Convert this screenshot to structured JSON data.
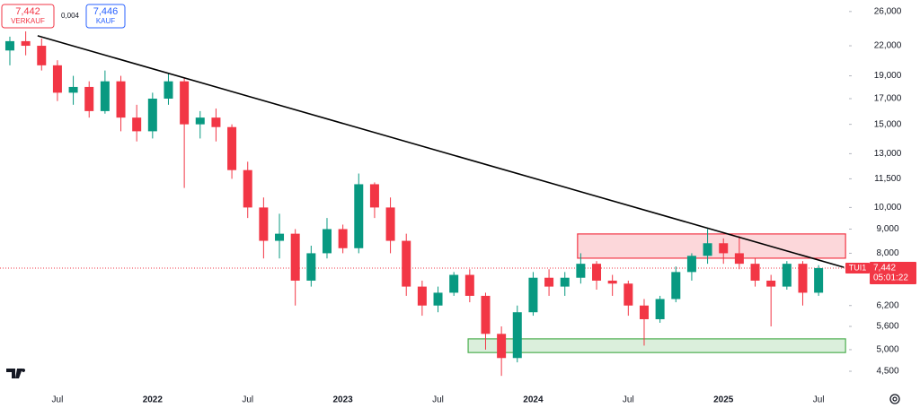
{
  "chart_data": {
    "type": "candlestick",
    "symbol": "TUI1",
    "categories": [
      null,
      null,
      null,
      null,
      "Jul",
      null,
      null,
      null,
      null,
      null,
      "2022",
      null,
      null,
      null,
      null,
      null,
      "Jul",
      null,
      null,
      null,
      null,
      null,
      "2023",
      null,
      null,
      null,
      null,
      null,
      "Jul",
      null,
      null,
      null,
      null,
      null,
      "2024",
      null,
      null,
      null,
      null,
      null,
      "Jul",
      null,
      null,
      null,
      null,
      null,
      "2025",
      null,
      null,
      null,
      null,
      null,
      "Jul"
    ],
    "open": [
      20.5,
      21.5,
      22.5,
      22.0,
      20.0,
      17.5,
      18.0,
      16.0,
      18.5,
      15.5,
      14.5,
      17.0,
      18.5,
      15.0,
      15.5,
      14.8,
      12.0,
      10.0,
      8.5,
      8.8,
      7.0,
      8.0,
      9.0,
      8.2,
      11.2,
      10.0,
      8.5,
      6.8,
      6.2,
      6.6,
      7.2,
      6.5,
      5.4,
      4.8,
      6.0,
      7.1,
      6.8,
      7.1,
      7.6,
      7.0,
      6.9,
      6.2,
      5.8,
      6.4,
      7.3,
      7.9,
      8.4,
      8.0,
      7.6,
      7.0,
      6.8,
      7.6,
      6.6
    ],
    "high": [
      22.5,
      23.0,
      23.6,
      22.8,
      20.5,
      19.0,
      18.5,
      19.5,
      19.0,
      16.5,
      17.5,
      19.2,
      18.8,
      16.0,
      16.2,
      15.0,
      12.5,
      10.5,
      9.7,
      9.0,
      8.3,
      9.5,
      9.2,
      11.8,
      11.3,
      10.5,
      8.8,
      7.0,
      6.8,
      7.3,
      7.4,
      6.6,
      5.6,
      6.2,
      7.3,
      7.4,
      7.3,
      8.0,
      7.7,
      7.2,
      7.0,
      6.4,
      6.5,
      7.5,
      8.0,
      9.0,
      8.6,
      8.7,
      7.8,
      7.2,
      7.7,
      7.7,
      7.55
    ],
    "low": [
      18.5,
      20.0,
      21.0,
      19.5,
      16.8,
      16.5,
      15.5,
      15.8,
      14.5,
      13.8,
      14.0,
      16.5,
      11.0,
      14.0,
      13.8,
      11.5,
      9.5,
      7.8,
      7.8,
      6.2,
      6.8,
      7.8,
      8.0,
      8.0,
      9.5,
      8.0,
      6.5,
      5.9,
      6.0,
      6.5,
      6.3,
      5.0,
      4.4,
      4.7,
      5.9,
      6.5,
      6.5,
      6.9,
      6.7,
      6.5,
      5.9,
      5.1,
      5.7,
      6.3,
      7.0,
      7.6,
      7.6,
      7.4,
      6.8,
      5.6,
      6.7,
      6.2,
      6.5
    ],
    "close": [
      21.5,
      22.5,
      22.0,
      20.0,
      17.5,
      18.0,
      16.0,
      18.5,
      15.5,
      14.5,
      17.0,
      18.5,
      15.0,
      15.5,
      14.8,
      12.0,
      10.0,
      8.5,
      8.8,
      7.0,
      8.0,
      9.0,
      8.2,
      11.2,
      10.0,
      8.5,
      6.8,
      6.2,
      6.6,
      7.2,
      6.5,
      5.4,
      4.8,
      6.0,
      7.1,
      6.8,
      7.1,
      7.6,
      7.0,
      6.9,
      6.2,
      5.8,
      6.4,
      7.3,
      7.9,
      8.4,
      8.0,
      7.6,
      7.0,
      6.8,
      7.6,
      6.6,
      7.442
    ],
    "up_color": "#089981",
    "down_color": "#f23645",
    "log_scale": true,
    "ylim": [
      4.16,
      27.5
    ],
    "yticks": [
      {
        "value": 26,
        "label": "26,000"
      },
      {
        "value": 22,
        "label": "22,000"
      },
      {
        "value": 19,
        "label": "19,000"
      },
      {
        "value": 17,
        "label": "17,000"
      },
      {
        "value": 15,
        "label": "15,000"
      },
      {
        "value": 13,
        "label": "13,000"
      },
      {
        "value": 11.5,
        "label": "11,500"
      },
      {
        "value": 10,
        "label": "10,000"
      },
      {
        "value": 9,
        "label": "9,000"
      },
      {
        "value": 8,
        "label": "8,000"
      },
      {
        "value": 6.2,
        "label": "6,200"
      },
      {
        "value": 5.6,
        "label": "5,600"
      },
      {
        "value": 5,
        "label": "5,000"
      },
      {
        "value": 4.5,
        "label": "4,500"
      }
    ],
    "last_price": {
      "value": 7.442,
      "label": "7,442"
    },
    "countdown": "05:01:22",
    "trendline": {
      "from": {
        "index": 2.75,
        "value": 23.1
      },
      "to": {
        "index": 53.6,
        "value": 7.47
      },
      "color": "#000000"
    },
    "zones": [
      {
        "from_index": 36.8,
        "to_index": 53.7,
        "ymin": 7.81,
        "ymax": 8.79,
        "color": "#f23645"
      },
      {
        "from_index": 29.9,
        "to_index": 53.7,
        "ymin": 4.93,
        "ymax": 5.27,
        "color": "#4caf50"
      }
    ],
    "sell": {
      "price": {
        "value": 7.442,
        "label": "7,442"
      },
      "label": "VERKAUF"
    },
    "spread": {
      "value": 0.004,
      "label": "0,004"
    },
    "buy": {
      "price": {
        "value": 7.446,
        "label": "7,446"
      },
      "label": "KAUF"
    }
  }
}
